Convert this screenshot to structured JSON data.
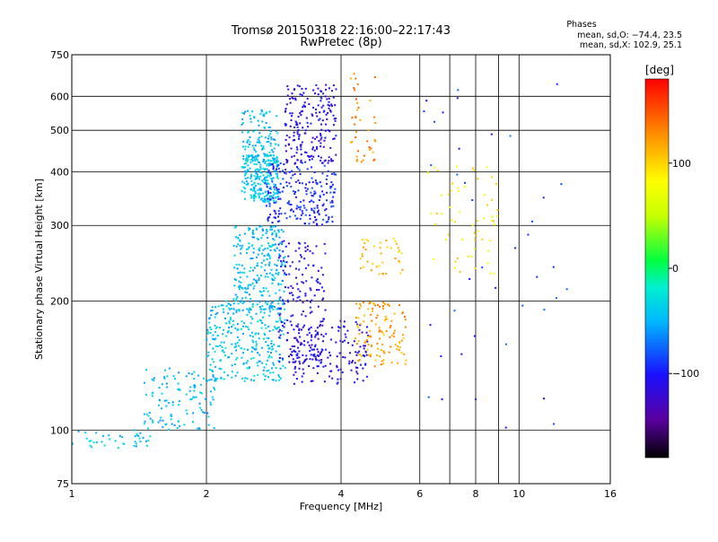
{
  "header": {
    "title_line1": "Tromsø 20150318 22:16:00–22:17:43",
    "title_line2": "RwPretec (8p)",
    "phases_title": "Phases",
    "phases_o": "mean, sd,O: −74.4, 23.5",
    "phases_x": "mean, sd,X: 102.9, 25.1"
  },
  "chart_data": {
    "type": "scatter",
    "xlabel": "Frequency [MHz]",
    "ylabel": "Stationary phase Virtual Height [km]",
    "xscale": "log",
    "yscale": "log",
    "xlim": [
      1,
      16
    ],
    "ylim": [
      75,
      750
    ],
    "xticks": [
      1,
      2,
      4,
      6,
      8,
      10,
      16
    ],
    "xtick_labels": [
      "1",
      "2",
      "4",
      "6",
      "8",
      "10",
      "16"
    ],
    "yticks": [
      75,
      100,
      200,
      300,
      400,
      500,
      600,
      750
    ],
    "ytick_labels": [
      "75",
      "100",
      "200",
      "300",
      "400",
      "500",
      "600",
      "750"
    ],
    "grid": true,
    "colorbar": {
      "label": "[deg]",
      "range": [
        -180,
        180
      ],
      "ticks": [
        100,
        0,
        -100
      ],
      "tick_labels": [
        "100",
        "0",
        "−100"
      ],
      "colormap": "rainbow"
    },
    "clusters": [
      {
        "x": [
          1.0,
          1.5
        ],
        "y": [
          90,
          100
        ],
        "phase": -40,
        "n": 40
      },
      {
        "x": [
          1.45,
          2.1
        ],
        "y": [
          100,
          140
        ],
        "phase": -45,
        "n": 120
      },
      {
        "x": [
          2.0,
          3.0
        ],
        "y": [
          130,
          200
        ],
        "phase": -40,
        "n": 300
      },
      {
        "x": [
          2.3,
          3.0
        ],
        "y": [
          190,
          300
        ],
        "phase": -45,
        "n": 260
      },
      {
        "x": [
          2.4,
          2.9
        ],
        "y": [
          340,
          440
        ],
        "phase": -40,
        "n": 260
      },
      {
        "x": [
          2.4,
          2.9
        ],
        "y": [
          440,
          560
        ],
        "phase": -45,
        "n": 90
      },
      {
        "x": [
          2.7,
          3.9
        ],
        "y": [
          300,
          420
        ],
        "phase": -95,
        "n": 220
      },
      {
        "x": [
          3.0,
          3.9
        ],
        "y": [
          420,
          640
        ],
        "phase": -110,
        "n": 200
      },
      {
        "x": [
          2.9,
          3.7
        ],
        "y": [
          140,
          280
        ],
        "phase": -110,
        "n": 180
      },
      {
        "x": [
          3.1,
          4.6
        ],
        "y": [
          128,
          180
        ],
        "phase": -112,
        "n": 160
      },
      {
        "x": [
          4.3,
          5.6
        ],
        "y": [
          140,
          200
        ],
        "phase": 120,
        "n": 120
      },
      {
        "x": [
          4.4,
          5.5
        ],
        "y": [
          230,
          280
        ],
        "phase": 110,
        "n": 40
      },
      {
        "x": [
          4.2,
          4.8
        ],
        "y": [
          420,
          680
        ],
        "phase": 130,
        "n": 40
      },
      {
        "x": [
          6.2,
          9.0
        ],
        "y": [
          230,
          420
        ],
        "phase": 90,
        "n": 60
      },
      {
        "x": [
          6.0,
          13.0
        ],
        "y": [
          100,
          680
        ],
        "phase": -90,
        "n": 40
      }
    ]
  }
}
